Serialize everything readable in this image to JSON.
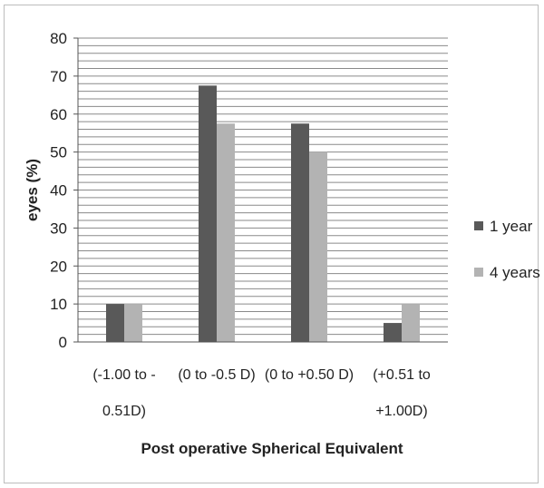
{
  "chart_data": {
    "type": "bar",
    "title": "",
    "xlabel": "Post operative Spherical Equivalent",
    "ylabel": "eyes (%)",
    "ylim": [
      0,
      80
    ],
    "yticks": [
      "0",
      "10",
      "20",
      "30",
      "40",
      "50",
      "60",
      "70",
      "80"
    ],
    "categories": [
      [
        "(-1.00 to -",
        "0.51D)"
      ],
      [
        "(0 to -0.5 D)"
      ],
      [
        "(0 to +0.50 D)"
      ],
      [
        "(+0.51 to",
        "+1.00D)"
      ]
    ],
    "series": [
      {
        "name": "1 year",
        "values": [
          10,
          67.5,
          57.5,
          5
        ],
        "color": "#595959"
      },
      {
        "name": "4 years",
        "values": [
          10,
          57.5,
          50,
          10
        ],
        "color": "#b3b3b3"
      }
    ],
    "grid": true,
    "legend_position": "right"
  }
}
